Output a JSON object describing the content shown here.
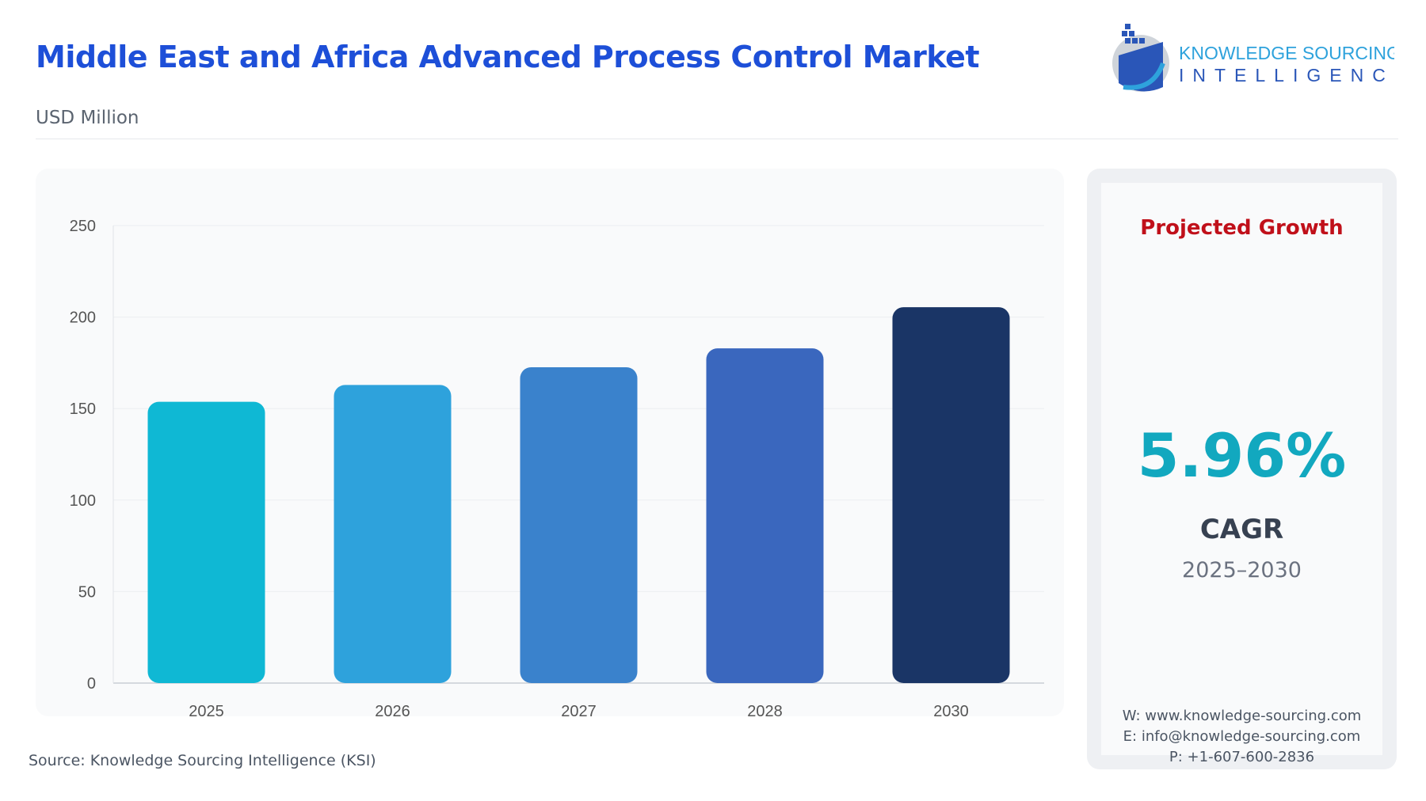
{
  "header": {
    "title": "Middle East and Africa Advanced Process Control Market",
    "subtitle": "USD Million"
  },
  "logo": {
    "line1": "KNOWLEDGE SOURCING",
    "line2": "INTELLIGENCE"
  },
  "chart_data": {
    "type": "bar",
    "categories": [
      "2025",
      "2026",
      "2027",
      "2028",
      "2030"
    ],
    "values": [
      153.7,
      162.9,
      172.6,
      182.9,
      205.4
    ],
    "ylim": [
      0,
      250
    ],
    "yticks": [
      0,
      50,
      100,
      150,
      200,
      250
    ],
    "grid": true,
    "colors": [
      "#0fb8d4",
      "#2ea2dc",
      "#3a82cc",
      "#3a67be",
      "#1a3566"
    ],
    "xlabel": "",
    "ylabel": ""
  },
  "growth": {
    "heading": "Projected Growth",
    "value": "5.96%",
    "label": "CAGR",
    "period": "2025–2030"
  },
  "contact": {
    "web": "W: www.knowledge-sourcing.com",
    "email": "E: info@knowledge-sourcing.com",
    "phone": "P: +1-607-600-2836"
  },
  "source": "Source: Knowledge Sourcing Intelligence (KSI)"
}
